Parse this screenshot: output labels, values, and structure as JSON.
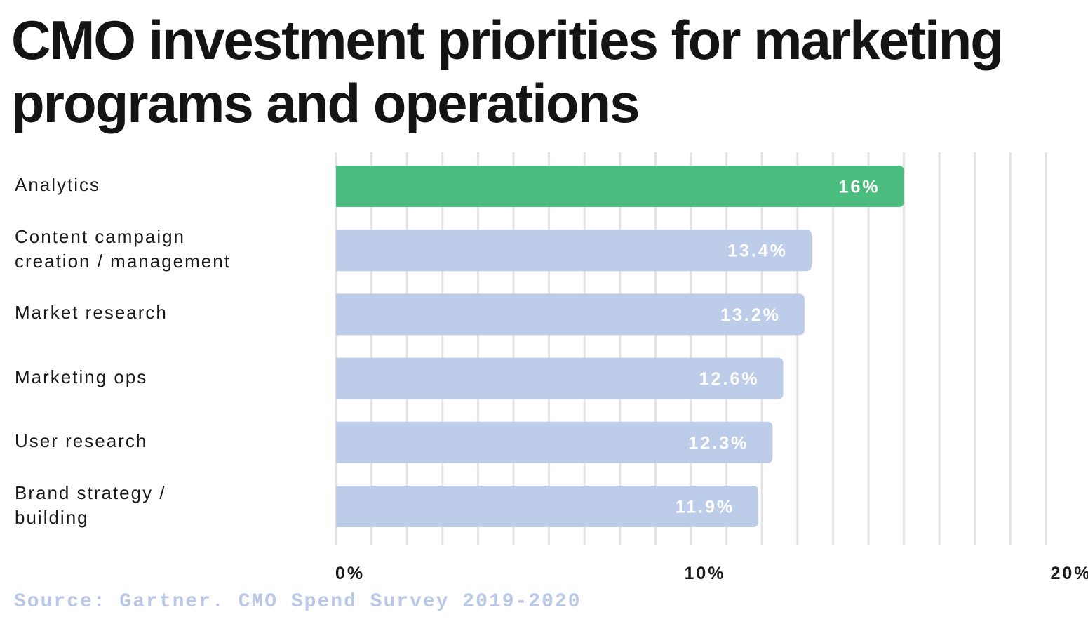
{
  "chart_data": {
    "type": "bar",
    "orientation": "horizontal",
    "title": "CMO investment priorities for marketing programs and operations",
    "categories": [
      "Analytics",
      "Content campaign\ncreation / management",
      "Market research",
      "Marketing ops",
      "User research",
      "Brand strategy /\nbuilding"
    ],
    "values": [
      16,
      13.4,
      13.2,
      12.6,
      12.3,
      11.9
    ],
    "value_labels": [
      "16%",
      "13.4%",
      "13.2%",
      "12.6%",
      "12.3%",
      "11.9%"
    ],
    "highlight_index": 0,
    "xlim": [
      0,
      20
    ],
    "x_ticks": [
      0,
      10,
      20
    ],
    "x_tick_labels": [
      "0%",
      "10%",
      "20%"
    ],
    "grid_step": 1,
    "grid": true,
    "xlabel": "",
    "ylabel": "",
    "colors": {
      "highlight": "#4bbd7f",
      "default": "#bccce9",
      "grid": "#e3e3e3",
      "source": "#b9c8e6"
    }
  },
  "source": "Source: Gartner. CMO Spend Survey 2019-2020"
}
